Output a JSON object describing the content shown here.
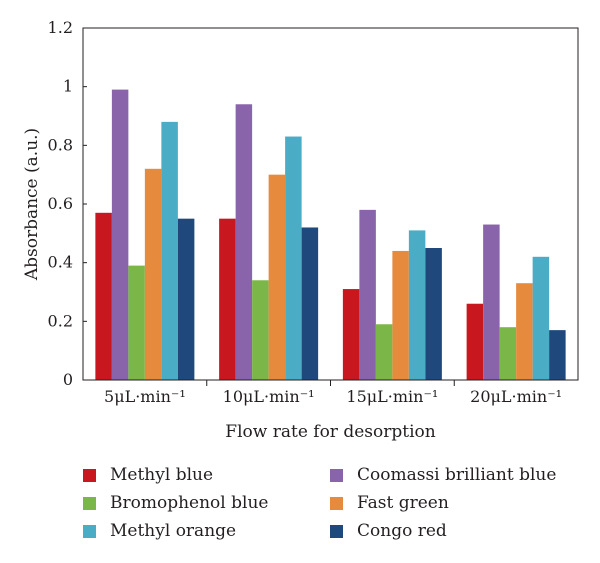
{
  "chart_data": {
    "type": "bar",
    "categories": [
      "5",
      "10",
      "15",
      "20"
    ],
    "category_unit": "μL·min⁻¹",
    "xlabel": "Flow rate for desorption",
    "ylabel": "Absorbance (a.u.)",
    "ylim": [
      0,
      1.2
    ],
    "yticks": [
      "0",
      "0.2",
      "0.4",
      "0.6",
      "0.8",
      "1",
      "1.2"
    ],
    "grid": false,
    "legend_position": "bottom",
    "series": [
      {
        "name": "Methyl blue",
        "color": "#c8171e",
        "values": [
          0.57,
          0.55,
          0.31,
          0.26
        ]
      },
      {
        "name": "Coomassi brilliant blue",
        "color": "#8a64ab",
        "values": [
          0.99,
          0.94,
          0.58,
          0.53
        ]
      },
      {
        "name": "Bromophenol blue",
        "color": "#7ab648",
        "values": [
          0.39,
          0.34,
          0.19,
          0.18
        ]
      },
      {
        "name": "Fast green",
        "color": "#e68a3e",
        "values": [
          0.72,
          0.7,
          0.44,
          0.33
        ]
      },
      {
        "name": "Methyl orange",
        "color": "#4bacc6",
        "values": [
          0.88,
          0.83,
          0.51,
          0.42
        ]
      },
      {
        "name": "Congo red",
        "color": "#1f497d",
        "values": [
          0.55,
          0.52,
          0.45,
          0.17
        ]
      }
    ]
  }
}
